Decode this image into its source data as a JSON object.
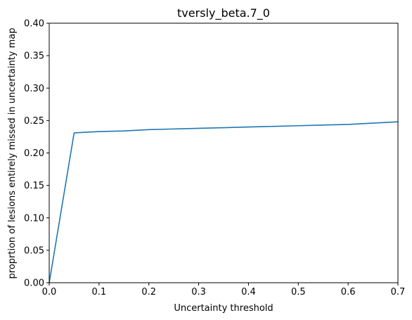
{
  "chart_data": {
    "type": "line",
    "title": "tversly_beta.7_0",
    "xlabel": "Uncertainty threshold",
    "ylabel": "proprtion of lesions entirely missed in uncertainty map",
    "xlim": [
      0.0,
      0.7
    ],
    "ylim": [
      0.0,
      0.4
    ],
    "x_ticks": [
      0.0,
      0.1,
      0.2,
      0.3,
      0.4,
      0.5,
      0.6,
      0.7
    ],
    "x_tick_labels": [
      "0.0",
      "0.1",
      "0.2",
      "0.3",
      "0.4",
      "0.5",
      "0.6",
      "0.7"
    ],
    "y_ticks": [
      0.0,
      0.05,
      0.1,
      0.15,
      0.2,
      0.25,
      0.3,
      0.35,
      0.4
    ],
    "y_tick_labels": [
      "0.00",
      "0.05",
      "0.10",
      "0.15",
      "0.20",
      "0.25",
      "0.30",
      "0.35",
      "0.40"
    ],
    "grid": false,
    "series": [
      {
        "color": "#1f77b4",
        "x": [
          0.0,
          0.05,
          0.1,
          0.15,
          0.2,
          0.25,
          0.3,
          0.35,
          0.4,
          0.45,
          0.5,
          0.55,
          0.6,
          0.65,
          0.7
        ],
        "y": [
          0.0,
          0.231,
          0.233,
          0.234,
          0.236,
          0.237,
          0.238,
          0.239,
          0.24,
          0.241,
          0.242,
          0.243,
          0.244,
          0.246,
          0.248
        ]
      }
    ]
  }
}
